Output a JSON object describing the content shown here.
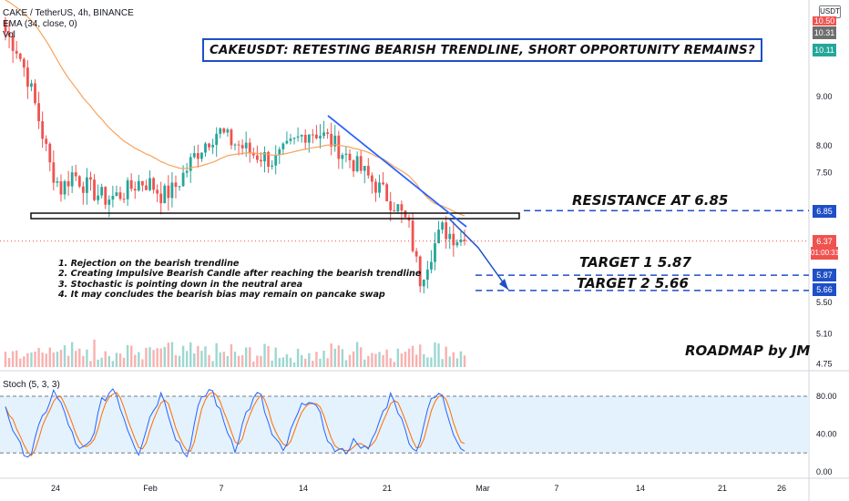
{
  "header": {
    "symbol_line": "CAKE / TetherUS, 4h, BINANCE",
    "ema_line": "EMA (34, close, 0)",
    "vol_line": "Vol",
    "currency": "USDT"
  },
  "annotations": {
    "title": "CAKEUSDT: RETESTING BEARISH TRENDLINE, SHORT OPPORTUNITY REMAINS?",
    "resistance": "RESISTANCE AT 6.85",
    "target1": "TARGET 1  5.87",
    "target2": "TARGET 2  5.66",
    "signature": "ROADMAP by JM",
    "notes": [
      "1. Rejection on the bearish trendline",
      "2. Creating Impulsive Bearish Candle after reaching the bearish trendline",
      "3. Stochastic is pointing down in the neutral area",
      "4. It may concludes the bearish bias may remain on pancake swap"
    ]
  },
  "price_tags": {
    "top_partial": "10.50",
    "high": "10.31",
    "green": "10.11",
    "resistance": "6.85",
    "current": "6.37",
    "countdown": "01:00:31",
    "target1": "5.87",
    "target2": "5.66"
  },
  "colors": {
    "bull": "#26a69a",
    "bear": "#ef5350",
    "ema": "#f7a35c",
    "trendline": "#2962ff",
    "dashed_level": "#1e4fc7",
    "stoch_k": "#2962ff",
    "stoch_d": "#ff6d00",
    "stoch_band": "#e3f2fd"
  },
  "chart_data": {
    "type": "candlestick",
    "scale": "log",
    "price_axis_ticks": [
      "9.00",
      "8.00",
      "7.50",
      "5.50",
      "5.10",
      "4.75"
    ],
    "time_axis_ticks": [
      "24",
      "Feb",
      "7",
      "14",
      "21",
      "Mar",
      "7",
      "14",
      "21",
      "26"
    ],
    "price_series": {
      "name": "CAKE / TetherUS",
      "timeframe": "4h",
      "approx_close_path": [
        10.5,
        10.1,
        9.4,
        8.5,
        7.6,
        7.2,
        7.5,
        7.3,
        7.15,
        7.05,
        7.1,
        7.2,
        7.35,
        7.3,
        7.1,
        7.2,
        7.5,
        7.85,
        8.1,
        8.3,
        8.1,
        8.0,
        7.85,
        7.8,
        7.7,
        7.9,
        8.1,
        8.3,
        8.25,
        8.1,
        7.9,
        7.7,
        7.5,
        7.3,
        7.1,
        6.9,
        6.6,
        5.8,
        6.2,
        6.55,
        6.45,
        6.37
      ],
      "last": 6.37
    },
    "ema": {
      "name": "EMA (34, close, 0)",
      "period": 34
    },
    "levels": [
      {
        "label": "RESISTANCE AT 6.85",
        "value": 6.85
      },
      {
        "label": "TARGET 1",
        "value": 5.87
      },
      {
        "label": "TARGET 2",
        "value": 5.66
      }
    ],
    "stochastic": {
      "name": "Stoch (5, 3, 3)",
      "upper_band": 80,
      "lower_band": 20,
      "axis_ticks": [
        "80.00",
        "40.00",
        "0.00"
      ],
      "k_path": [
        70,
        30,
        15,
        55,
        85,
        60,
        20,
        30,
        75,
        90,
        50,
        20,
        60,
        85,
        40,
        15,
        70,
        90,
        55,
        25,
        65,
        85,
        40,
        20,
        55,
        80,
        60,
        25,
        20,
        35,
        20,
        55,
        85,
        45,
        20,
        70,
        85,
        45,
        20
      ],
      "last_k": 22,
      "last_d": 30
    }
  }
}
